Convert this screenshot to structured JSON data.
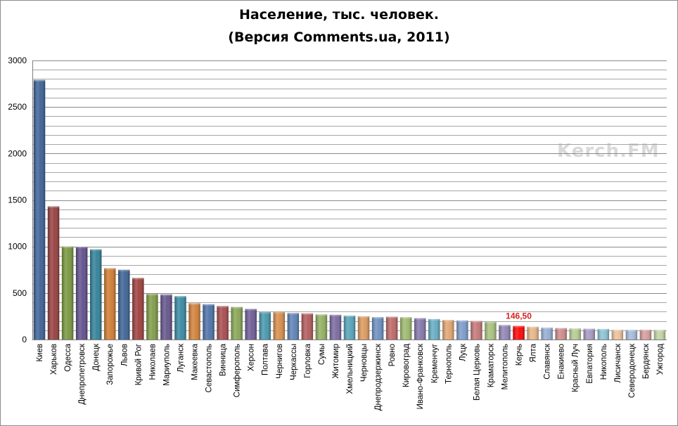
{
  "chart_data": {
    "type": "bar",
    "title": "Население, тыс. человек.",
    "subtitle": "(Версия Comments.ua, 2011)",
    "watermark": "Kerch.FM",
    "xlabel": "",
    "ylabel": "",
    "ylim": [
      0,
      3000
    ],
    "yticks": [
      "0",
      "500",
      "1000",
      "1500",
      "2000",
      "2500",
      "3000"
    ],
    "grid": true,
    "categories": [
      "Киев",
      "Харьков",
      "Одесса",
      "Днепропетровск",
      "Донецк",
      "Запорожье",
      "Львов",
      "Кривой Рог",
      "Николаев",
      "Мариуполь",
      "Луганск",
      "Макеевка",
      "Севастополь",
      "Винница",
      "Симферополь",
      "Херсон",
      "Полтава",
      "Чернигов",
      "Черкассы",
      "Горловка",
      "Сумы",
      "Житомир",
      "Хмельницкий",
      "Черновцы",
      "Днепродзержинск",
      "Ровно",
      "Кировоград",
      "Ивано-Франковск",
      "Кременчуг",
      "Тернополь",
      "Луцк",
      "Белая Церковь",
      "Краматорск",
      "Мелитополь",
      "Керчь",
      "Ялта",
      "Славянск",
      "Енакиево",
      "Красный Луч",
      "Евпатория",
      "Никополь",
      "Лисичанск",
      "Северодонецк",
      "Бердянск",
      "Ужгород"
    ],
    "values": [
      2790,
      1432,
      1000,
      997,
      970,
      767,
      750,
      662,
      490,
      485,
      466,
      390,
      379,
      360,
      350,
      329,
      295,
      296,
      285,
      281,
      270,
      266,
      257,
      250,
      240,
      245,
      240,
      230,
      220,
      210,
      205,
      200,
      190,
      156,
      146.5,
      138,
      128,
      123,
      119,
      116,
      114,
      105,
      104,
      106,
      104
    ],
    "data_label": "146,50",
    "highlight_category": "Керчь",
    "colors": [
      "#3a5f94",
      "#953c3c",
      "#76953c",
      "#5e4d8a",
      "#2f7f96",
      "#cf7a30",
      "#3a6194",
      "#9b3d3a",
      "#7d9a45",
      "#625189",
      "#3687a1",
      "#d17f37",
      "#4a70a6",
      "#a6494a",
      "#86a451",
      "#6c5a94",
      "#4495ad",
      "#d68c4a",
      "#5b80b5",
      "#b25758",
      "#91ae5e",
      "#7767a0",
      "#53a1b8",
      "#db985c",
      "#6a8dbf",
      "#bc6565",
      "#9cb86b",
      "#8374aa",
      "#62abc2",
      "#e0a46f",
      "#7a9ac8",
      "#c47575",
      "#a6c07b",
      "#8f82b3",
      "#e31a1a",
      "#e6b485",
      "#93acd3",
      "#cc8a8a",
      "#b4cb90",
      "#a397c0",
      "#89c1d3",
      "#ebc09b",
      "#a3bad9",
      "#d49a9a",
      "#c0d3a0"
    ]
  }
}
